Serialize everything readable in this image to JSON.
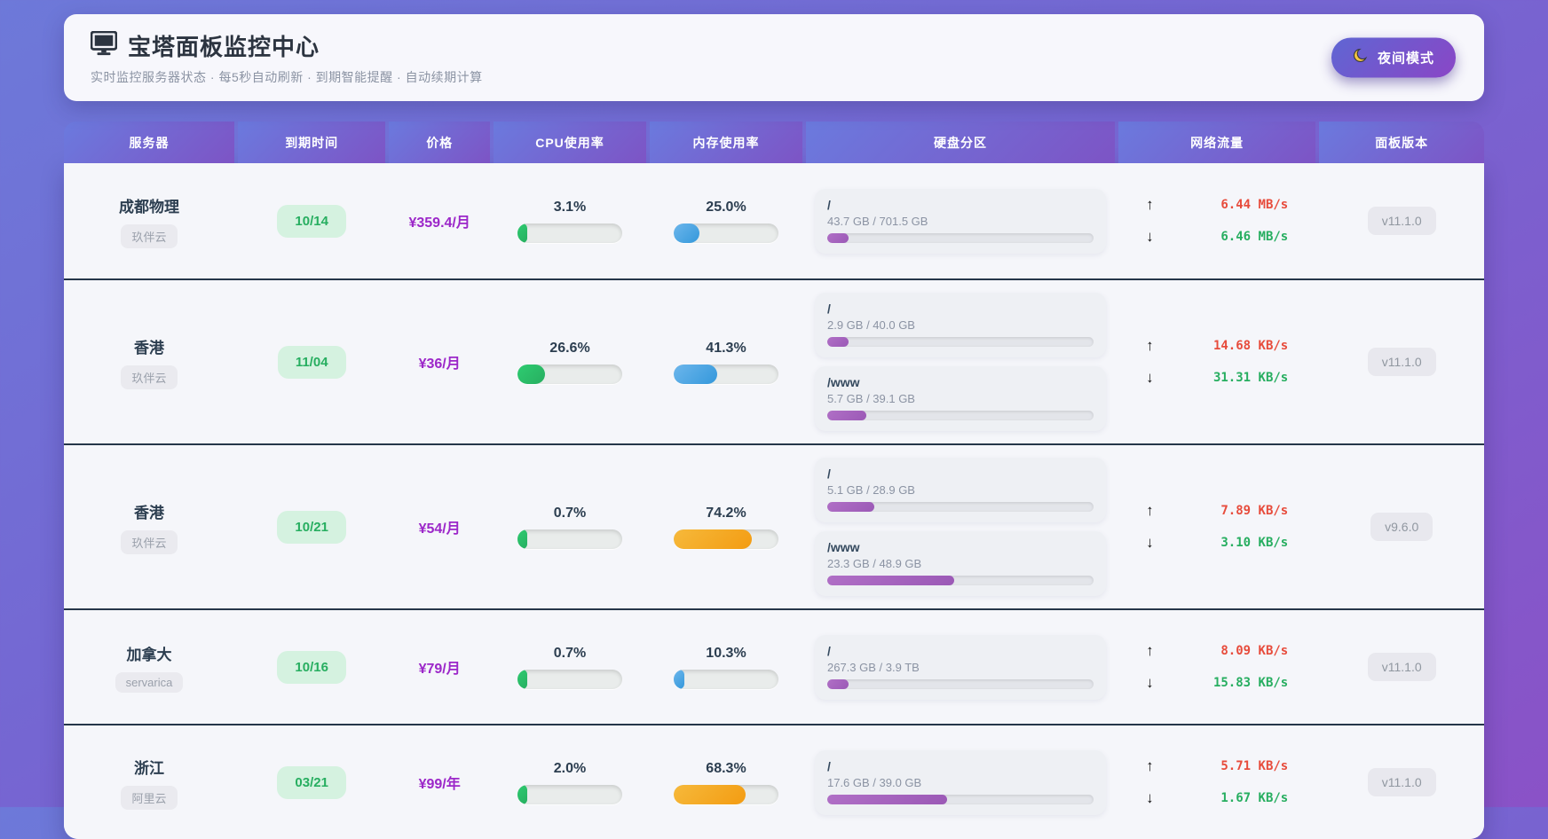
{
  "app": {
    "title": "宝塔面板监控中心",
    "subtitle": "实时监控服务器状态 · 每5秒自动刷新 · 到期智能提醒 · 自动续期计算",
    "night_mode_label": "夜间模式"
  },
  "icons": {
    "up_arrow": "↑",
    "down_arrow": "↓"
  },
  "colors": {
    "cpu_green": "#27ae60",
    "mem_blue": "#3498db",
    "mem_orange": "#f39c12",
    "disk_purple": "#9b59b6",
    "net_up_red": "#e74c3c",
    "net_down_green": "#27ae60",
    "price_purple": "#9c27c9",
    "row_separator": "#253649"
  },
  "table": {
    "columns": [
      "服务器",
      "到期时间",
      "价格",
      "CPU使用率",
      "内存使用率",
      "硬盘分区",
      "网络流量",
      "面板版本"
    ],
    "rows": [
      {
        "name": "成都物理",
        "provider": "玖伴云",
        "expiry": "10/14",
        "price": "¥359.4/月",
        "cpu": {
          "label": "3.1%",
          "pct": 3.1,
          "color": "green"
        },
        "mem": {
          "label": "25.0%",
          "pct": 25.0,
          "color": "blue"
        },
        "disks": [
          {
            "mount": "/",
            "usage": "43.7 GB / 701.5 GB",
            "pct": 6.2
          }
        ],
        "net_up": "6.44 MB/s",
        "net_down": "6.46 MB/s",
        "version": "v11.1.0"
      },
      {
        "name": "香港",
        "provider": "玖伴云",
        "expiry": "11/04",
        "price": "¥36/月",
        "cpu": {
          "label": "26.6%",
          "pct": 26.6,
          "color": "green"
        },
        "mem": {
          "label": "41.3%",
          "pct": 41.3,
          "color": "blue"
        },
        "disks": [
          {
            "mount": "/",
            "usage": "2.9 GB / 40.0 GB",
            "pct": 7.3
          },
          {
            "mount": "/www",
            "usage": "5.7 GB / 39.1 GB",
            "pct": 14.6
          }
        ],
        "net_up": "14.68 KB/s",
        "net_down": "31.31 KB/s",
        "version": "v11.1.0"
      },
      {
        "name": "香港",
        "provider": "玖伴云",
        "expiry": "10/21",
        "price": "¥54/月",
        "cpu": {
          "label": "0.7%",
          "pct": 0.7,
          "color": "green"
        },
        "mem": {
          "label": "74.2%",
          "pct": 74.2,
          "color": "orange"
        },
        "disks": [
          {
            "mount": "/",
            "usage": "5.1 GB / 28.9 GB",
            "pct": 17.6
          },
          {
            "mount": "/www",
            "usage": "23.3 GB / 48.9 GB",
            "pct": 47.6
          }
        ],
        "net_up": "7.89 KB/s",
        "net_down": "3.10 KB/s",
        "version": "v9.6.0"
      },
      {
        "name": "加拿大",
        "provider": "servarica",
        "expiry": "10/16",
        "price": "¥79/月",
        "cpu": {
          "label": "0.7%",
          "pct": 0.7,
          "color": "green"
        },
        "mem": {
          "label": "10.3%",
          "pct": 10.3,
          "color": "blue"
        },
        "disks": [
          {
            "mount": "/",
            "usage": "267.3 GB / 3.9 TB",
            "pct": 6.7
          }
        ],
        "net_up": "8.09 KB/s",
        "net_down": "15.83 KB/s",
        "version": "v11.1.0"
      },
      {
        "name": "浙江",
        "provider": "阿里云",
        "expiry": "03/21",
        "price": "¥99/年",
        "cpu": {
          "label": "2.0%",
          "pct": 2.0,
          "color": "green"
        },
        "mem": {
          "label": "68.3%",
          "pct": 68.3,
          "color": "orange"
        },
        "disks": [
          {
            "mount": "/",
            "usage": "17.6 GB / 39.0 GB",
            "pct": 45.1
          }
        ],
        "net_up": "5.71 KB/s",
        "net_down": "1.67 KB/s",
        "version": "v11.1.0"
      }
    ]
  }
}
